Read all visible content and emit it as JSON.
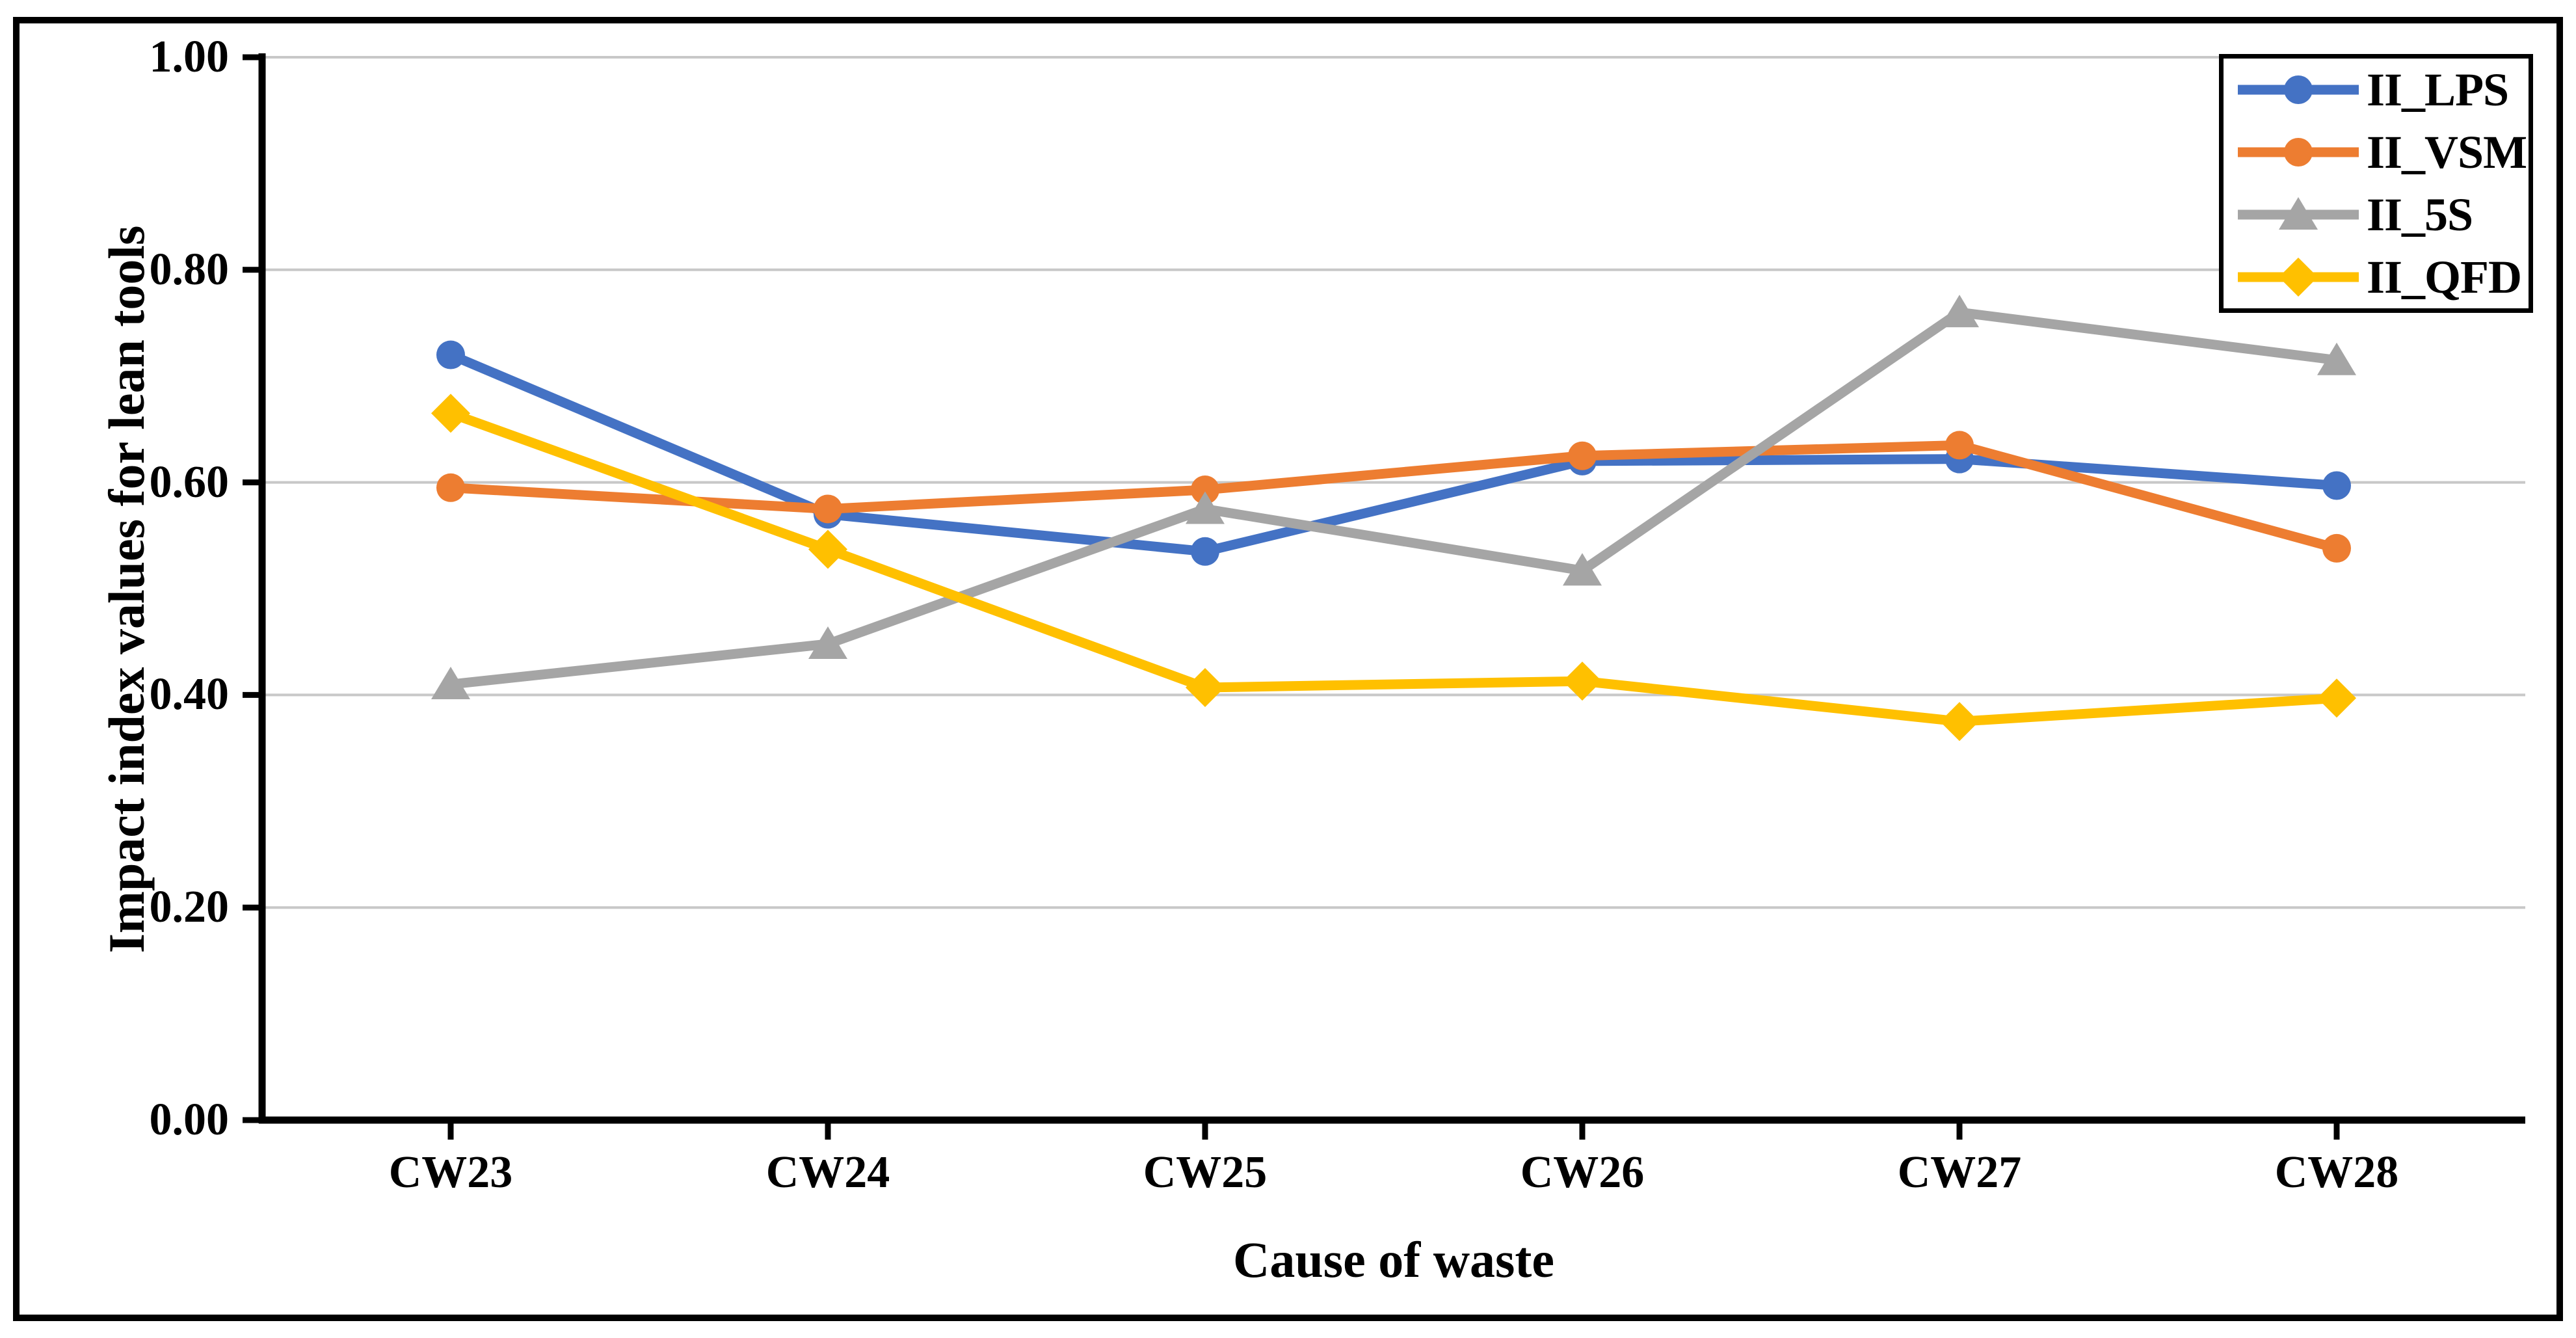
{
  "figure": {
    "background": "#FFFFFF",
    "border_color": "#000000",
    "grid_color": "#C8C8C8",
    "axis_color": "#000000"
  },
  "chart_data": {
    "type": "line",
    "title": "",
    "xlabel": "Cause of waste",
    "ylabel": "Impact index values for lean tools",
    "categories": [
      "CW23",
      "CW24",
      "CW25",
      "CW26",
      "CW27",
      "CW28"
    ],
    "ylim": [
      0.0,
      1.0
    ],
    "ytick_labels": [
      "0.00",
      "0.20",
      "0.40",
      "0.60",
      "0.80",
      "1.00"
    ],
    "grid": "horizontal-major",
    "legend_position": "top-right",
    "series": [
      {
        "name": "II_LPS",
        "color": "#4472C4",
        "marker": "circle",
        "values": [
          0.72,
          0.57,
          0.535,
          0.62,
          0.622,
          0.597
        ]
      },
      {
        "name": "II_VSM",
        "color": "#ED7D31",
        "marker": "circle",
        "values": [
          0.595,
          0.575,
          0.593,
          0.625,
          0.635,
          0.538
        ]
      },
      {
        "name": "II_5S",
        "color": "#A5A5A5",
        "marker": "triangle",
        "values": [
          0.41,
          0.448,
          0.575,
          0.517,
          0.76,
          0.715
        ]
      },
      {
        "name": "II_QFD",
        "color": "#FFC000",
        "marker": "diamond",
        "values": [
          0.665,
          0.537,
          0.407,
          0.413,
          0.375,
          0.397
        ]
      }
    ]
  }
}
